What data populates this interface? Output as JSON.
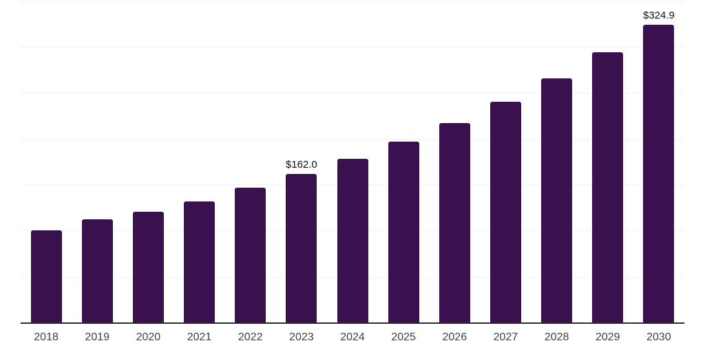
{
  "chart_data": {
    "type": "bar",
    "title": "",
    "xlabel": "",
    "ylabel": "",
    "categories": [
      "2018",
      "2019",
      "2020",
      "2021",
      "2022",
      "2023",
      "2024",
      "2025",
      "2026",
      "2027",
      "2028",
      "2029",
      "2030"
    ],
    "values": [
      101.0,
      113.3,
      121.2,
      132.3,
      147.2,
      162.0,
      179.0,
      197.6,
      218.0,
      241.1,
      266.6,
      294.9,
      324.9
    ],
    "data_labels": [
      {
        "category": "2023",
        "text": "$162.0"
      },
      {
        "category": "2030",
        "text": "$324.9"
      }
    ],
    "ylim": [
      0,
      350
    ],
    "gridline_step": 50,
    "grid": "horizontal-only",
    "legend": "none",
    "y_tick_labels_visible": false
  },
  "colors": {
    "background": "#ffffff",
    "bar": "#38114e",
    "gridline": "#f2f2f2",
    "axis_line": "#2b2b2b",
    "x_label": "#404040",
    "value_label": "#111111"
  }
}
